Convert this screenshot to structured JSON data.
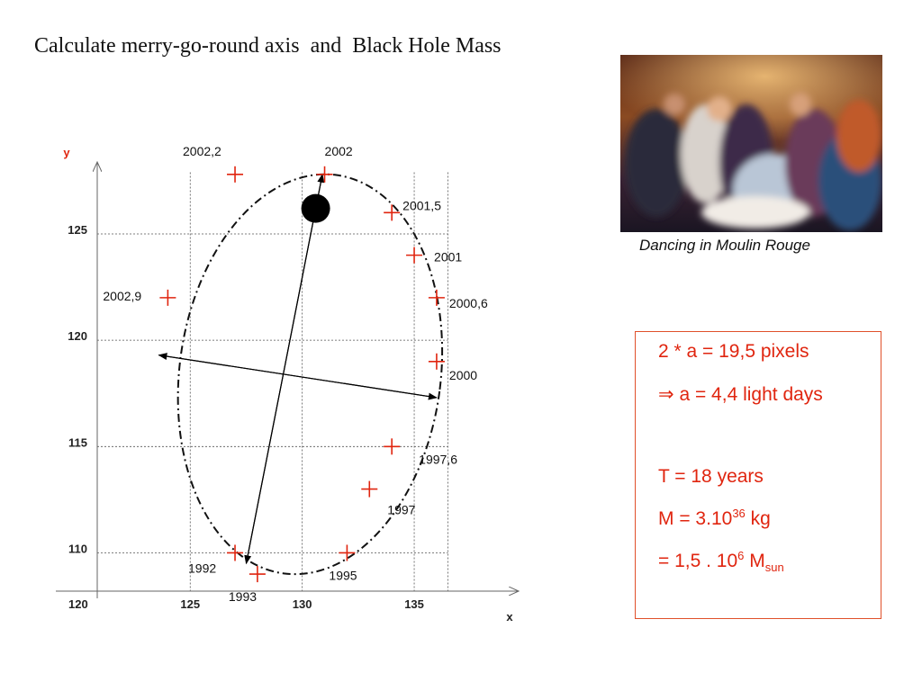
{
  "title": "Calculate merry-go-round axis  and  Black Hole Mass",
  "photo": {
    "caption": "Dancing in Moulin Rouge"
  },
  "results": {
    "line1": "2 * a = 19,5 pixels",
    "line2_symbol": "⇒",
    "line2_text": " a = 4,4 light days",
    "line3": "T = 18 years",
    "line4_prefix": "M = 3.10",
    "line4_exp": "36",
    "line4_suffix": " kg",
    "line5_prefix": "= 1,5 . 10",
    "line5_exp": "6",
    "line5_mid": " M",
    "line5_sub": "sun"
  },
  "chart_data": {
    "type": "scatter",
    "xlabel": "x",
    "ylabel": "y",
    "xlim": [
      119,
      139.5
    ],
    "ylim": [
      108.2,
      128.3
    ],
    "xticks": [
      120,
      125,
      130,
      135
    ],
    "yticks": [
      110,
      115,
      120,
      125
    ],
    "grid": true,
    "marker": "plus",
    "marker_color": "#e0250f",
    "points": [
      {
        "label": "2002,2",
        "x": 127.0,
        "y": 127.8
      },
      {
        "label": "2002",
        "x": 131.0,
        "y": 127.8
      },
      {
        "label": "2001,5",
        "x": 134.0,
        "y": 126.0
      },
      {
        "label": "2001",
        "x": 135.0,
        "y": 124.0
      },
      {
        "label": "2000,6",
        "x": 136.0,
        "y": 122.0
      },
      {
        "label": "2002,9",
        "x": 124.0,
        "y": 122.0
      },
      {
        "label": "2000",
        "x": 136.0,
        "y": 119.0
      },
      {
        "label": "1997,6",
        "x": 134.0,
        "y": 115.0
      },
      {
        "label": "1997",
        "x": 133.0,
        "y": 113.0
      },
      {
        "label": "1992",
        "x": 127.0,
        "y": 110.0
      },
      {
        "label": "1995",
        "x": 132.0,
        "y": 110.0
      },
      {
        "label": "1993",
        "x": 128.0,
        "y": 109.0
      }
    ],
    "orbit_ellipse": {
      "cx": 130.35,
      "cy": 118.4,
      "rx": 5.83,
      "ry": 9.45,
      "rotation_deg": 7.5
    },
    "black_hole": {
      "x": 130.6,
      "y": 126.2
    },
    "major_axis": {
      "from": [
        130.9,
        127.8
      ],
      "to": [
        127.5,
        109.5
      ]
    },
    "minor_axis": {
      "from": [
        123.6,
        119.3
      ],
      "to": [
        136.0,
        117.3
      ]
    }
  }
}
